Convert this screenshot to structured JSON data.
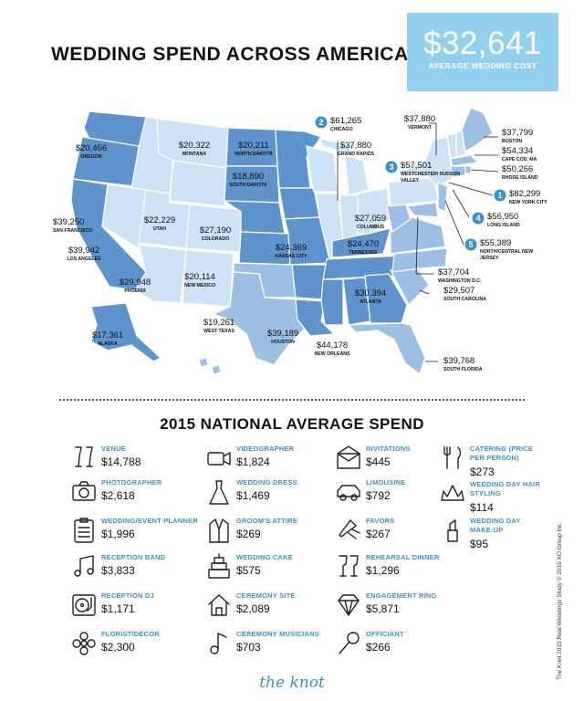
{
  "title": "WEDDING SPEND ACROSS AMERICA",
  "average": {
    "amount": "$32,641",
    "label": "AVERAGE WEDDING COST"
  },
  "map_labels": [
    {
      "value": "$20,456",
      "place": "OREGON"
    },
    {
      "value": "$20,322",
      "place": "MONTANA"
    },
    {
      "value": "$20,211",
      "place": "NORTH DAKOTA"
    },
    {
      "value": "$18,890",
      "place": "SOUTH DAKOTA"
    },
    {
      "value": "$39,250",
      "place": "SAN FRANCISCO"
    },
    {
      "value": "$22,229",
      "place": "UTAH"
    },
    {
      "value": "$27,190",
      "place": "COLORADO"
    },
    {
      "value": "$39,942",
      "place": "LOS ANGELES"
    },
    {
      "value": "$29,948",
      "place": "PHOENIX"
    },
    {
      "value": "$20,114",
      "place": "NEW MEXICO"
    },
    {
      "value": "$19,261",
      "place": "WEST TEXAS"
    },
    {
      "value": "$39,189",
      "place": "HOUSTON"
    },
    {
      "value": "$17,361",
      "place": "ALASKA"
    },
    {
      "value": "$24,369",
      "place": "KANSAS CITY"
    },
    {
      "value": "$24,470",
      "place": "TENNESSEE"
    },
    {
      "value": "$44,178",
      "place": "NEW ORLEANS"
    },
    {
      "value": "$27,059",
      "place": "COLUMBUS"
    },
    {
      "value": "$30,394",
      "place": "ATLANTA"
    },
    {
      "value": "$39,768",
      "place": "SOUTH FLORIDA"
    },
    {
      "value": "$29,507",
      "place": "SOUTH CAROLINA"
    },
    {
      "value": "$37,704",
      "place": "WASHINGTON D.C."
    },
    {
      "value": "$37,880",
      "place": "GRAND RAPIDS"
    },
    {
      "value": "$37,880",
      "place": "VERMONT"
    },
    {
      "value": "$37,799",
      "place": "BOSTON"
    },
    {
      "value": "$54,334",
      "place": "CAPE COD, MA"
    },
    {
      "value": "$50,266",
      "place": "RHODE ISLAND"
    }
  ],
  "top_five": [
    {
      "rank": "1",
      "value": "$82,299",
      "place": "NEW YORK CITY"
    },
    {
      "rank": "2",
      "value": "$61,265",
      "place": "CHICAGO"
    },
    {
      "rank": "3",
      "value": "$57,501",
      "place": "WESTCHESTER/ HUDSON VALLEY"
    },
    {
      "rank": "4",
      "value": "$56,950",
      "place": "LONG ISLAND"
    },
    {
      "rank": "5",
      "value": "$55,389",
      "place": "NORTH/CENTRAL NEW JERSEY"
    }
  ],
  "subtitle": "2015 NATIONAL AVERAGE SPEND",
  "spend_items": [
    {
      "label": "VENUE",
      "value": "$14,788",
      "icon": "champagne-glasses-icon"
    },
    {
      "label": "PHOTOGRAPHER",
      "value": "$2,618",
      "icon": "camera-icon"
    },
    {
      "label": "WEDDING/EVENT PLANNER",
      "value": "$1,996",
      "icon": "clipboard-icon"
    },
    {
      "label": "RECEPTION BAND",
      "value": "$3,833",
      "icon": "music-notes-icon"
    },
    {
      "label": "RECEPTION DJ",
      "value": "$1,171",
      "icon": "turntable-icon"
    },
    {
      "label": "FLORIST/DÉCOR",
      "value": "$2,300",
      "icon": "flower-icon"
    },
    {
      "label": "VIDEOGRAPHER",
      "value": "$1,824",
      "icon": "video-camera-icon"
    },
    {
      "label": "WEDDING DRESS",
      "value": "$1,469",
      "icon": "dress-icon"
    },
    {
      "label": "GROOM'S ATTIRE",
      "value": "$269",
      "icon": "tuxedo-icon"
    },
    {
      "label": "WEDDING CAKE",
      "value": "$575",
      "icon": "cake-icon"
    },
    {
      "label": "CEREMONY SITE",
      "value": "$2,089",
      "icon": "house-icon"
    },
    {
      "label": "CEREMONY MUSICIANS",
      "value": "$703",
      "icon": "music-note-icon"
    },
    {
      "label": "INVITATIONS",
      "value": "$445",
      "icon": "envelope-icon"
    },
    {
      "label": "LIMOUSINE",
      "value": "$792",
      "icon": "car-icon"
    },
    {
      "label": "FAVORS",
      "value": "$267",
      "icon": "party-favor-icon"
    },
    {
      "label": "REHEARSAL DINNER",
      "value": "$1,296",
      "icon": "wine-glasses-icon"
    },
    {
      "label": "ENGAGEMENT RING",
      "value": "$5,871",
      "icon": "diamond-icon"
    },
    {
      "label": "OFFICIANT",
      "value": "$266",
      "icon": "microphone-icon"
    },
    {
      "label": "CATERING (PRICE PER PERSON)",
      "value": "$273",
      "icon": "fork-knife-icon"
    },
    {
      "label": "WEDDING DAY HAIR STYLING",
      "value": "$114",
      "icon": "tiara-icon"
    },
    {
      "label": "WEDDING DAY MAKE-UP",
      "value": "$95",
      "icon": "lipstick-icon"
    }
  ],
  "logo": "the knot",
  "credit": "The Knot 2015 Real Weddings Study © 2016 XO Group Inc.",
  "colors": {
    "dark": "#5f93cc",
    "mid": "#9cbfe3",
    "light": "#cde2f4",
    "pale": "#e3eef9",
    "accent": "#3d8fd0",
    "box": "#93d0ee"
  }
}
